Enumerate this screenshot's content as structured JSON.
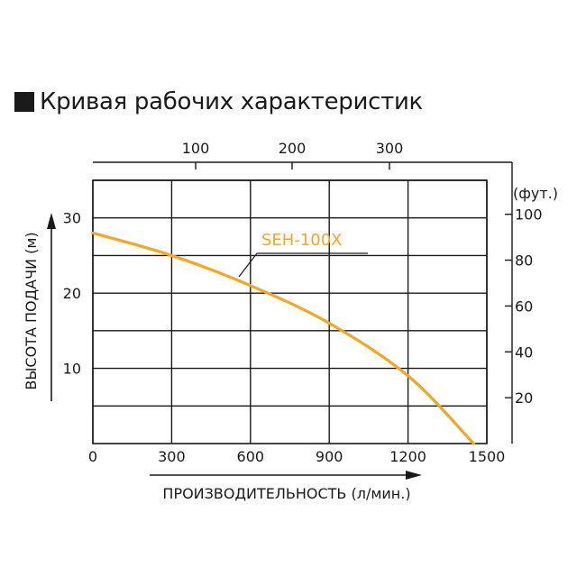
{
  "title": "Кривая рабочих характеристик",
  "chart_data": {
    "type": "line",
    "xlabel": "ПРОИЗВОДИТЕЛЬНОСТЬ (л/мин.)",
    "ylabel": "ВЫСОТА ПОДАЧИ (м)",
    "xlim": [
      0,
      1500
    ],
    "ylim": [
      0,
      35
    ],
    "x_ticks": [
      0,
      300,
      600,
      900,
      1200,
      1500
    ],
    "y_ticks": [
      10,
      20,
      30
    ],
    "secondary_x": {
      "ticks": [
        100,
        200,
        300
      ]
    },
    "secondary_y": {
      "unit_label": "(фут.)",
      "ticks": [
        20,
        40,
        60,
        80,
        100
      ]
    },
    "grid": true,
    "series": [
      {
        "name": "SEH-100X",
        "color": "#f5a623",
        "x": [
          0,
          300,
          600,
          900,
          1200,
          1450
        ],
        "y": [
          28,
          25,
          21,
          16,
          9,
          0
        ]
      }
    ]
  }
}
